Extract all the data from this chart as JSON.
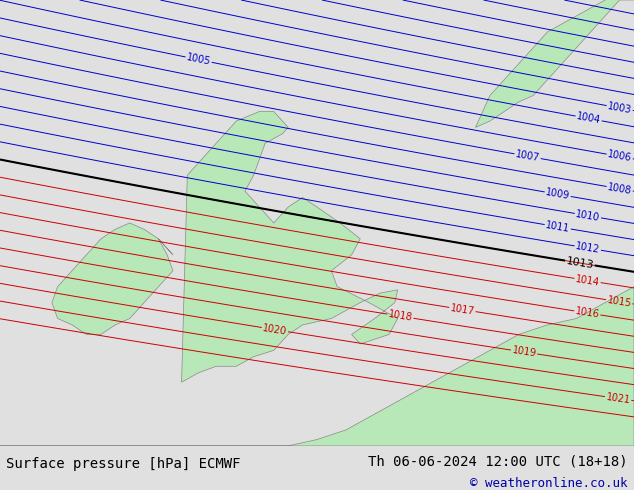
{
  "title_left": "Surface pressure [hPa] ECMWF",
  "title_right": "Th 06-06-2024 12:00 UTC (18+18)",
  "copyright": "© weatheronline.co.uk",
  "bg_color": "#e0e0e0",
  "land_color": "#b8e8b8",
  "border_color": "#888888",
  "blue_color": "#0000cc",
  "red_color": "#cc0000",
  "black_color": "#000000",
  "font_color": "#000000",
  "copyright_color": "#0000aa",
  "footer_bg": "#cccccc",
  "title_fontsize": 10,
  "label_fontsize": 7
}
